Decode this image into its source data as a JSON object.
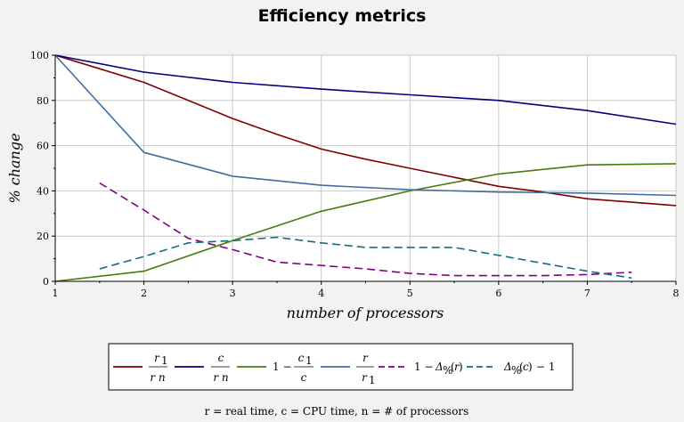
{
  "chart_data": {
    "type": "line",
    "title": "Efficiency metrics",
    "xlabel": "number of processors",
    "ylabel": "% change",
    "xlim": [
      1,
      8
    ],
    "ylim": [
      0,
      100
    ],
    "x_ticks": [
      "1",
      "2",
      "3",
      "4",
      "5",
      "6",
      "7",
      "8"
    ],
    "y_ticks": [
      "0",
      "20",
      "40",
      "60",
      "80",
      "100"
    ],
    "grid": true,
    "legend_position": "bottom",
    "series": [
      {
        "name": "r1 / (r n)",
        "color": "#800000",
        "dash": "solid",
        "x": [
          1,
          1.5,
          2,
          2.5,
          3,
          3.5,
          4,
          4.5,
          5,
          5.5,
          6,
          6.5,
          7,
          7.5,
          8
        ],
        "values": [
          100,
          94,
          88,
          80,
          72,
          65,
          58.5,
          54,
          50,
          46,
          42,
          39.5,
          36.5,
          35,
          33.5
        ]
      },
      {
        "name": "c / (r n)",
        "color": "#000080",
        "dash": "solid",
        "x": [
          1,
          2,
          3,
          4,
          5,
          6,
          7,
          8
        ],
        "values": [
          100,
          92.5,
          88,
          85,
          82.5,
          80,
          75.5,
          69.5
        ]
      },
      {
        "name": "1 − c1 / c",
        "color": "#4a7a0f",
        "dash": "solid",
        "x": [
          1,
          2,
          3,
          4,
          5,
          6,
          7,
          8
        ],
        "values": [
          0,
          4.5,
          18,
          31,
          40,
          47.5,
          51.5,
          52
        ]
      },
      {
        "name": "r / r1",
        "color": "#3f6fa0",
        "dash": "solid",
        "x": [
          1,
          2,
          3,
          4,
          5,
          6,
          7,
          8
        ],
        "values": [
          100,
          57,
          46.5,
          42.5,
          40.5,
          39.5,
          39,
          38
        ]
      },
      {
        "name": "1 − Δ%(r)",
        "color": "#800080",
        "dash": "dashed",
        "x": [
          1.5,
          2,
          2.5,
          3,
          3.5,
          4,
          4.5,
          5,
          5.5,
          6,
          6.5,
          7,
          7.5
        ],
        "values": [
          43.5,
          31.5,
          19,
          14,
          8.5,
          7,
          5.5,
          3.5,
          2.5,
          2.5,
          2.5,
          3,
          4
        ]
      },
      {
        "name": "Δ%(c) − 1",
        "color": "#116e80",
        "dash": "dashed",
        "x": [
          1.5,
          2,
          2.5,
          3,
          3.5,
          4,
          4.5,
          5,
          5.5,
          6,
          6.5,
          7,
          7.5
        ],
        "values": [
          5.5,
          11,
          17,
          18,
          19.5,
          17,
          15,
          15,
          15,
          11.5,
          8,
          4.5,
          1.5
        ]
      }
    ],
    "footnote": "r = real time,  c = CPU time,  n = # of processors"
  }
}
